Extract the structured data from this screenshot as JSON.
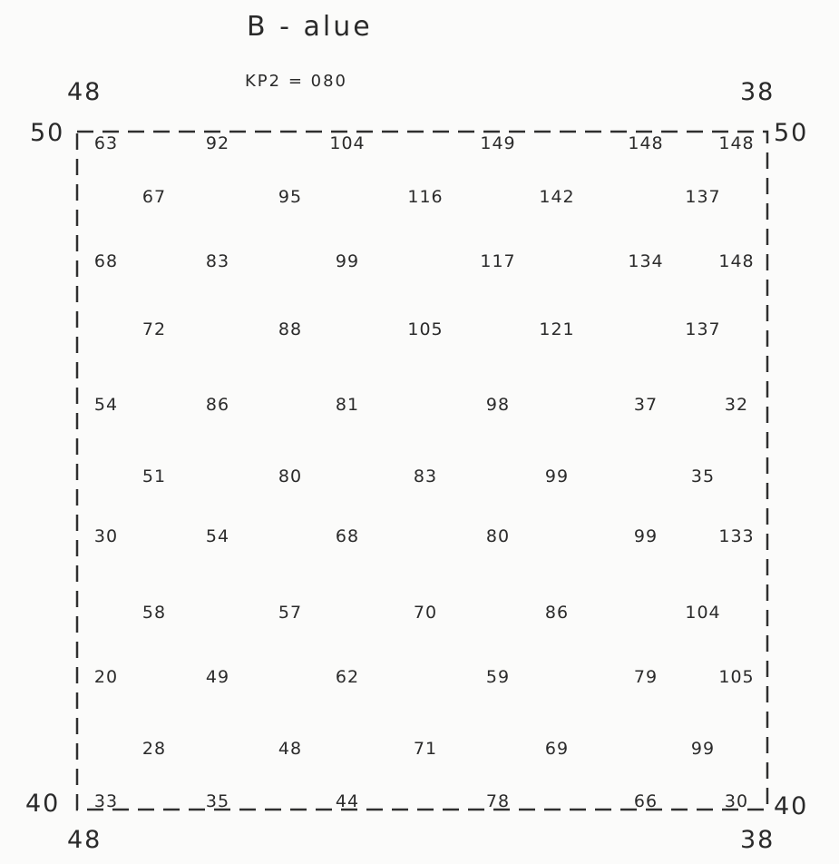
{
  "title": "B - alue",
  "subtitle": "KP2 = 080",
  "corners": {
    "top_left_outer": "48",
    "top_right_outer": "38",
    "top_left_side": "50",
    "top_right_side": "50",
    "bottom_left_side": "40",
    "bottom_right_side": "40",
    "bottom_left_outer": "48",
    "bottom_right_outer": "38"
  },
  "grid_rows": [
    [
      "63",
      "92",
      "104",
      "149",
      "148",
      "148"
    ],
    [
      "67",
      "95",
      "116",
      "142",
      "137"
    ],
    [
      "68",
      "83",
      "99",
      "117",
      "134",
      "148"
    ],
    [
      "72",
      "88",
      "105",
      "121",
      "137"
    ],
    [
      "54",
      "86",
      "81",
      "98",
      "37",
      "32"
    ],
    [
      "51",
      "80",
      "83",
      "99",
      "35"
    ],
    [
      "30",
      "54",
      "68",
      "80",
      "99",
      "133"
    ],
    [
      "58",
      "57",
      "70",
      "86",
      "104"
    ],
    [
      "20",
      "49",
      "62",
      "59",
      "79",
      "105"
    ],
    [
      "28",
      "48",
      "71",
      "69",
      "99"
    ],
    [
      "33",
      "35",
      "44",
      "78",
      "66",
      "30"
    ]
  ]
}
